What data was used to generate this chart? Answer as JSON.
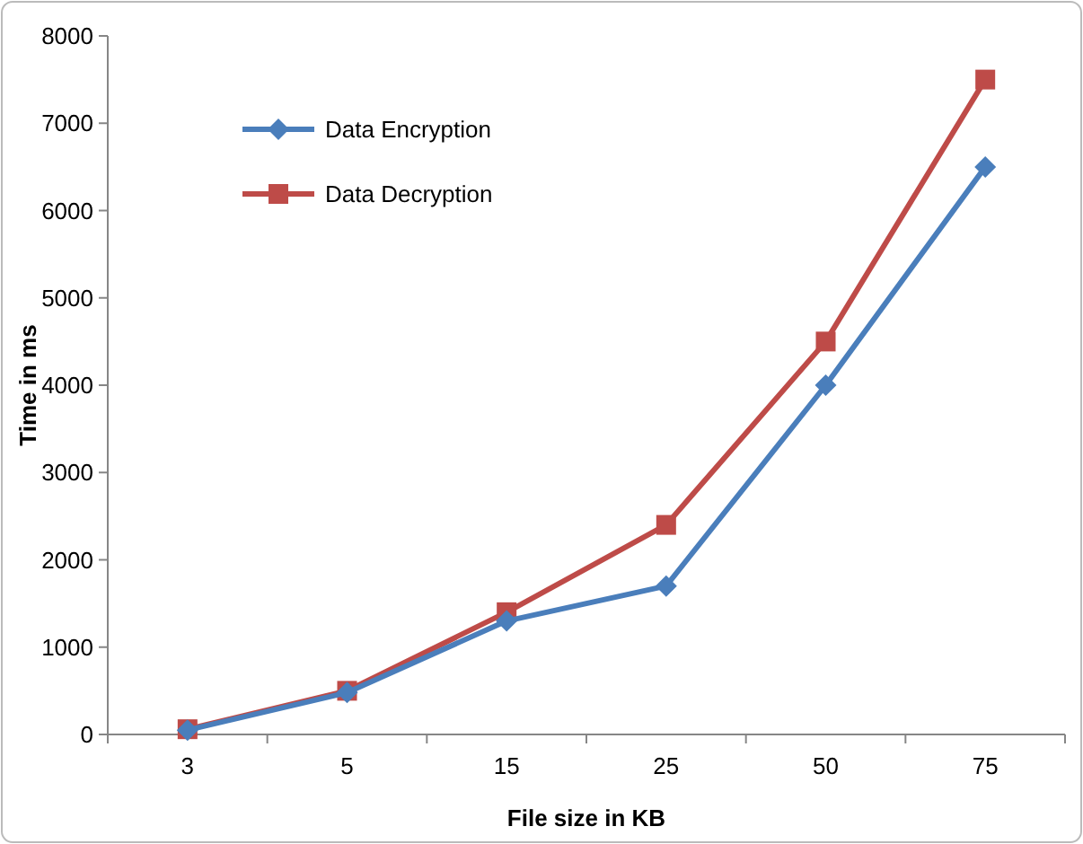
{
  "chart_data": {
    "type": "line",
    "xlabel": "File size in KB",
    "ylabel": "Time in ms",
    "categories": [
      "3",
      "5",
      "15",
      "25",
      "50",
      "75"
    ],
    "ylim": [
      0,
      8000
    ],
    "yticks": [
      0,
      1000,
      2000,
      3000,
      4000,
      5000,
      6000,
      7000,
      8000
    ],
    "grid": false,
    "legend": "top left",
    "line_style": "solid",
    "series": [
      {
        "name": "Data Encryption",
        "color": "#4a7ebb",
        "marker": "diamond",
        "values": [
          50,
          480,
          1300,
          1700,
          4000,
          6500
        ]
      },
      {
        "name": "Data Decryption",
        "color": "#be4b48",
        "marker": "square",
        "values": [
          60,
          500,
          1400,
          2400,
          4500,
          7500
        ]
      }
    ]
  }
}
